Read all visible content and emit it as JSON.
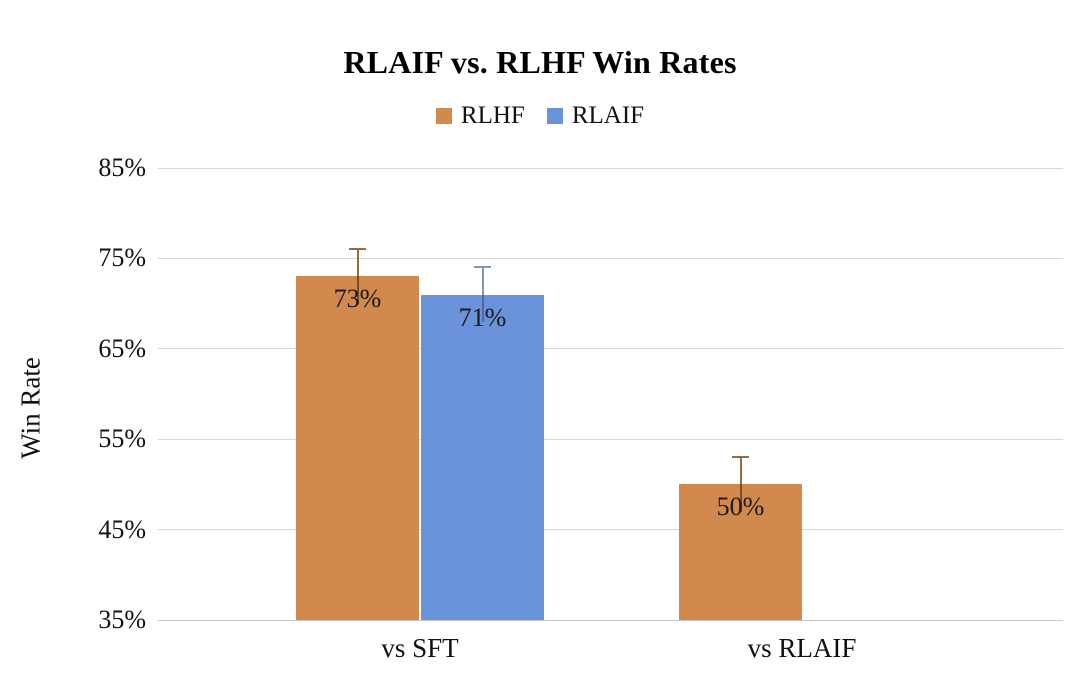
{
  "chart_data": {
    "type": "bar",
    "title": "RLAIF vs. RLHF Win Rates",
    "ylabel": "Win Rate",
    "xlabel": "",
    "categories": [
      "vs SFT",
      "vs RLAIF"
    ],
    "series": [
      {
        "name": "RLHF",
        "color": "#D2894E",
        "error_color": "#9C6B3C",
        "error_color_inner": "#7A4E22",
        "values": [
          73,
          50
        ],
        "errors": [
          3,
          3
        ],
        "labels": [
          "73%",
          "50%"
        ]
      },
      {
        "name": "RLAIF",
        "color": "#6B93DB",
        "error_color": "#8496B8",
        "error_color_inner": "#4F69A4",
        "values": [
          71,
          null
        ],
        "errors": [
          3,
          null
        ],
        "labels": [
          "71%",
          null
        ]
      }
    ],
    "y_axis": {
      "ticks": [
        "85%",
        "75%",
        "65%",
        "55%",
        "45%",
        "35%"
      ],
      "tick_values": [
        85,
        75,
        65,
        55,
        45,
        35
      ],
      "min": 35,
      "max": 85,
      "unit": "%"
    },
    "grid": "horizontal",
    "legend_position": "top",
    "background": "#FFFFFF",
    "gridline_color": "#D8D8D8"
  }
}
